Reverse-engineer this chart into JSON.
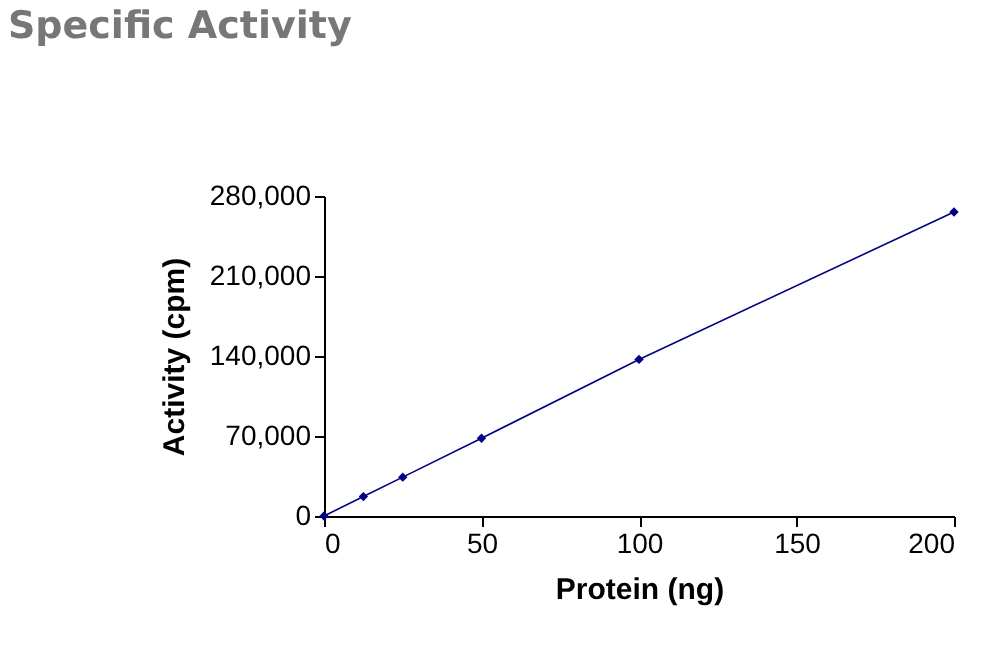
{
  "chart_data": {
    "type": "line",
    "title": "Specific Activity",
    "xlabel": "Protein (ng)",
    "ylabel": "Activity (cpm)",
    "x": [
      0,
      12.5,
      25,
      50,
      100,
      200
    ],
    "series": [
      {
        "color": "#000080",
        "values": [
          0,
          17000,
          34000,
          68000,
          137000,
          266000
        ]
      }
    ],
    "xlim": [
      0,
      200
    ],
    "xticks": [
      0,
      50,
      100,
      150,
      200
    ],
    "ylim": [
      0,
      280000
    ],
    "yticks": [
      0,
      {
        "value": 70000,
        "label": "70,000"
      },
      {
        "value": 140000,
        "label": "140,000"
      },
      {
        "value": 210000,
        "label": "210,000"
      },
      {
        "value": 280000,
        "label": "280,000"
      }
    ],
    "grid": false,
    "legend": false,
    "marker": "diamond",
    "line_style": "solid"
  }
}
